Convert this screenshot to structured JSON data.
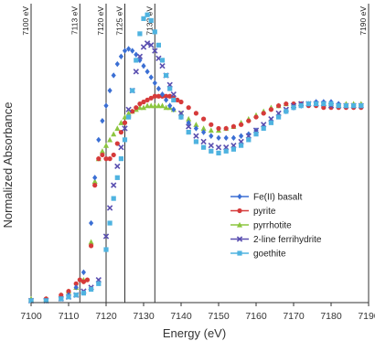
{
  "chart_data": {
    "type": "scatter",
    "title": "",
    "xlabel": "Energy (eV)",
    "ylabel": "Normalized Absorbance",
    "xlim": [
      7100,
      7190
    ],
    "ylim": [
      0,
      1.55
    ],
    "x_ticks": [
      "7100",
      "7110",
      "7120",
      "7130",
      "7140",
      "7150",
      "7160",
      "7170",
      "7180",
      "7190"
    ],
    "legend_position": "right",
    "grid": false,
    "reference_lines": [
      {
        "x": 7100,
        "label": "7100 eV"
      },
      {
        "x": 7113,
        "label": "7113 eV"
      },
      {
        "x": 7120,
        "label": "7120 eV"
      },
      {
        "x": 7125,
        "label": "7125 eV"
      },
      {
        "x": 7133,
        "label": "7133 eV"
      },
      {
        "x": 7190,
        "label": "7190 eV"
      }
    ],
    "series": [
      {
        "name": "Fe(II) basalt",
        "color": "#3b6fd4",
        "marker": "diamond",
        "points": [
          [
            7100,
            0.01
          ],
          [
            7104,
            0.01
          ],
          [
            7108,
            0.02
          ],
          [
            7110,
            0.04
          ],
          [
            7112,
            0.08
          ],
          [
            7114,
            0.16
          ],
          [
            7116,
            0.42
          ],
          [
            7117,
            0.66
          ],
          [
            7118,
            0.86
          ],
          [
            7119,
            0.96
          ],
          [
            7120,
            1.04
          ],
          [
            7121,
            1.12
          ],
          [
            7122,
            1.2
          ],
          [
            7123,
            1.26
          ],
          [
            7124,
            1.3
          ],
          [
            7125,
            1.33
          ],
          [
            7126,
            1.34
          ],
          [
            7127,
            1.33
          ],
          [
            7128,
            1.31
          ],
          [
            7129,
            1.28
          ],
          [
            7130,
            1.25
          ],
          [
            7131,
            1.22
          ],
          [
            7132,
            1.19
          ],
          [
            7133,
            1.16
          ],
          [
            7134,
            1.13
          ],
          [
            7135,
            1.1
          ],
          [
            7136,
            1.07
          ],
          [
            7137,
            1.04
          ],
          [
            7138,
            1.02
          ],
          [
            7140,
            0.98
          ],
          [
            7142,
            0.95
          ],
          [
            7144,
            0.92
          ],
          [
            7146,
            0.9
          ],
          [
            7148,
            0.88
          ],
          [
            7150,
            0.87
          ],
          [
            7152,
            0.87
          ],
          [
            7154,
            0.87
          ],
          [
            7156,
            0.88
          ],
          [
            7158,
            0.89
          ],
          [
            7160,
            0.91
          ],
          [
            7162,
            0.93
          ],
          [
            7164,
            0.96
          ],
          [
            7166,
            0.99
          ],
          [
            7168,
            1.01
          ],
          [
            7170,
            1.03
          ],
          [
            7172,
            1.04
          ],
          [
            7174,
            1.05
          ],
          [
            7176,
            1.06
          ],
          [
            7178,
            1.06
          ],
          [
            7180,
            1.06
          ],
          [
            7182,
            1.05
          ],
          [
            7184,
            1.04
          ],
          [
            7186,
            1.04
          ],
          [
            7188,
            1.04
          ]
        ]
      },
      {
        "name": "pyrite",
        "color": "#d63a3a",
        "marker": "circle",
        "points": [
          [
            7100,
            0.01
          ],
          [
            7104,
            0.02
          ],
          [
            7108,
            0.04
          ],
          [
            7110,
            0.06
          ],
          [
            7112,
            0.1
          ],
          [
            7113,
            0.12
          ],
          [
            7114,
            0.11
          ],
          [
            7115,
            0.12
          ],
          [
            7116,
            0.3
          ],
          [
            7117,
            0.62
          ],
          [
            7118,
            0.76
          ],
          [
            7119,
            0.78
          ],
          [
            7120,
            0.76
          ],
          [
            7121,
            0.76
          ],
          [
            7122,
            0.78
          ],
          [
            7123,
            0.84
          ],
          [
            7124,
            0.9
          ],
          [
            7125,
            0.95
          ],
          [
            7126,
            0.98
          ],
          [
            7127,
            1.01
          ],
          [
            7128,
            1.03
          ],
          [
            7129,
            1.05
          ],
          [
            7130,
            1.06
          ],
          [
            7131,
            1.07
          ],
          [
            7132,
            1.08
          ],
          [
            7133,
            1.09
          ],
          [
            7134,
            1.09
          ],
          [
            7135,
            1.09
          ],
          [
            7136,
            1.09
          ],
          [
            7137,
            1.09
          ],
          [
            7138,
            1.08
          ],
          [
            7139,
            1.07
          ],
          [
            7140,
            1.06
          ],
          [
            7142,
            1.03
          ],
          [
            7144,
            1.0
          ],
          [
            7146,
            0.97
          ],
          [
            7148,
            0.94
          ],
          [
            7150,
            0.92
          ],
          [
            7152,
            0.92
          ],
          [
            7154,
            0.93
          ],
          [
            7156,
            0.94
          ],
          [
            7158,
            0.96
          ],
          [
            7160,
            0.98
          ],
          [
            7162,
            1.0
          ],
          [
            7164,
            1.02
          ],
          [
            7166,
            1.04
          ],
          [
            7168,
            1.05
          ],
          [
            7170,
            1.05
          ],
          [
            7172,
            1.05
          ],
          [
            7174,
            1.04
          ],
          [
            7176,
            1.04
          ],
          [
            7178,
            1.03
          ],
          [
            7180,
            1.03
          ],
          [
            7182,
            1.03
          ],
          [
            7184,
            1.03
          ],
          [
            7186,
            1.03
          ],
          [
            7188,
            1.03
          ]
        ]
      },
      {
        "name": "pyrrhotite",
        "color": "#8cc63f",
        "marker": "triangle",
        "points": [
          [
            7100,
            0.02
          ],
          [
            7104,
            0.02
          ],
          [
            7108,
            0.04
          ],
          [
            7110,
            0.06
          ],
          [
            7112,
            0.08
          ],
          [
            7114,
            0.12
          ],
          [
            7116,
            0.32
          ],
          [
            7117,
            0.64
          ],
          [
            7118,
            0.76
          ],
          [
            7119,
            0.8
          ],
          [
            7120,
            0.83
          ],
          [
            7121,
            0.86
          ],
          [
            7122,
            0.89
          ],
          [
            7123,
            0.92
          ],
          [
            7124,
            0.95
          ],
          [
            7125,
            0.98
          ],
          [
            7126,
            1.0
          ],
          [
            7127,
            1.01
          ],
          [
            7128,
            1.02
          ],
          [
            7129,
            1.03
          ],
          [
            7130,
            1.03
          ],
          [
            7131,
            1.04
          ],
          [
            7132,
            1.04
          ],
          [
            7133,
            1.04
          ],
          [
            7134,
            1.04
          ],
          [
            7135,
            1.04
          ],
          [
            7136,
            1.03
          ],
          [
            7137,
            1.03
          ],
          [
            7138,
            1.02
          ],
          [
            7140,
            1.0
          ],
          [
            7142,
            0.97
          ],
          [
            7144,
            0.94
          ],
          [
            7146,
            0.92
          ],
          [
            7148,
            0.91
          ],
          [
            7150,
            0.91
          ],
          [
            7152,
            0.92
          ],
          [
            7154,
            0.93
          ],
          [
            7156,
            0.95
          ],
          [
            7158,
            0.97
          ],
          [
            7160,
            0.99
          ],
          [
            7162,
            1.01
          ],
          [
            7164,
            1.03
          ],
          [
            7166,
            1.04
          ],
          [
            7168,
            1.05
          ],
          [
            7170,
            1.05
          ],
          [
            7172,
            1.05
          ],
          [
            7174,
            1.05
          ],
          [
            7176,
            1.05
          ],
          [
            7178,
            1.05
          ],
          [
            7180,
            1.05
          ],
          [
            7182,
            1.05
          ],
          [
            7184,
            1.05
          ],
          [
            7186,
            1.05
          ],
          [
            7188,
            1.05
          ]
        ]
      },
      {
        "name": "2-line ferrihydrite",
        "color": "#5a4fb0",
        "marker": "x",
        "points": [
          [
            7100,
            0.01
          ],
          [
            7104,
            0.01
          ],
          [
            7108,
            0.02
          ],
          [
            7110,
            0.03
          ],
          [
            7112,
            0.04
          ],
          [
            7114,
            0.06
          ],
          [
            7116,
            0.08
          ],
          [
            7118,
            0.12
          ],
          [
            7120,
            0.35
          ],
          [
            7121,
            0.5
          ],
          [
            7122,
            0.62
          ],
          [
            7123,
            0.72
          ],
          [
            7124,
            0.82
          ],
          [
            7125,
            0.92
          ],
          [
            7126,
            1.02
          ],
          [
            7127,
            1.12
          ],
          [
            7128,
            1.22
          ],
          [
            7129,
            1.3
          ],
          [
            7130,
            1.35
          ],
          [
            7131,
            1.37
          ],
          [
            7132,
            1.36
          ],
          [
            7133,
            1.33
          ],
          [
            7134,
            1.29
          ],
          [
            7135,
            1.25
          ],
          [
            7136,
            1.2
          ],
          [
            7137,
            1.15
          ],
          [
            7138,
            1.1
          ],
          [
            7140,
            1.0
          ],
          [
            7142,
            0.93
          ],
          [
            7144,
            0.88
          ],
          [
            7146,
            0.85
          ],
          [
            7148,
            0.83
          ],
          [
            7150,
            0.82
          ],
          [
            7152,
            0.82
          ],
          [
            7154,
            0.83
          ],
          [
            7156,
            0.85
          ],
          [
            7158,
            0.88
          ],
          [
            7160,
            0.91
          ],
          [
            7162,
            0.94
          ],
          [
            7164,
            0.97
          ],
          [
            7166,
            1.0
          ],
          [
            7168,
            1.02
          ],
          [
            7170,
            1.04
          ],
          [
            7172,
            1.05
          ],
          [
            7174,
            1.05
          ],
          [
            7176,
            1.05
          ],
          [
            7178,
            1.05
          ],
          [
            7180,
            1.04
          ],
          [
            7182,
            1.04
          ],
          [
            7184,
            1.04
          ],
          [
            7186,
            1.04
          ],
          [
            7188,
            1.04
          ]
        ]
      },
      {
        "name": "goethite",
        "color": "#4fb3e0",
        "marker": "square",
        "points": [
          [
            7100,
            0.01
          ],
          [
            7104,
            0.01
          ],
          [
            7108,
            0.02
          ],
          [
            7110,
            0.03
          ],
          [
            7112,
            0.04
          ],
          [
            7114,
            0.05
          ],
          [
            7116,
            0.07
          ],
          [
            7118,
            0.1
          ],
          [
            7120,
            0.28
          ],
          [
            7121,
            0.42
          ],
          [
            7122,
            0.55
          ],
          [
            7123,
            0.66
          ],
          [
            7124,
            0.76
          ],
          [
            7125,
            0.86
          ],
          [
            7126,
            0.98
          ],
          [
            7127,
            1.12
          ],
          [
            7128,
            1.28
          ],
          [
            7129,
            1.42
          ],
          [
            7130,
            1.5
          ],
          [
            7131,
            1.52
          ],
          [
            7132,
            1.49
          ],
          [
            7133,
            1.43
          ],
          [
            7134,
            1.36
          ],
          [
            7135,
            1.28
          ],
          [
            7136,
            1.2
          ],
          [
            7137,
            1.13
          ],
          [
            7138,
            1.07
          ],
          [
            7140,
            0.98
          ],
          [
            7142,
            0.9
          ],
          [
            7144,
            0.85
          ],
          [
            7146,
            0.82
          ],
          [
            7148,
            0.8
          ],
          [
            7150,
            0.79
          ],
          [
            7152,
            0.8
          ],
          [
            7154,
            0.81
          ],
          [
            7156,
            0.83
          ],
          [
            7158,
            0.86
          ],
          [
            7160,
            0.89
          ],
          [
            7162,
            0.92
          ],
          [
            7164,
            0.95
          ],
          [
            7166,
            0.98
          ],
          [
            7168,
            1.01
          ],
          [
            7170,
            1.03
          ],
          [
            7172,
            1.04
          ],
          [
            7174,
            1.05
          ],
          [
            7176,
            1.05
          ],
          [
            7178,
            1.05
          ],
          [
            7180,
            1.05
          ],
          [
            7182,
            1.04
          ],
          [
            7184,
            1.04
          ],
          [
            7186,
            1.04
          ],
          [
            7188,
            1.04
          ]
        ]
      }
    ]
  }
}
